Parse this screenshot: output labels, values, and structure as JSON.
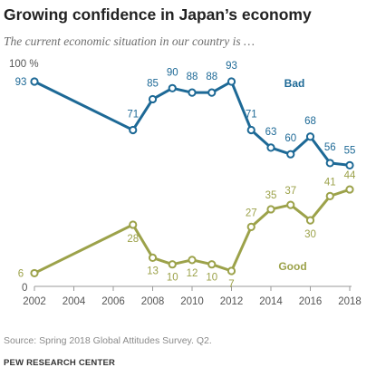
{
  "chart_data": {
    "type": "line",
    "title": "Growing confidence in Japan’s economy",
    "subtitle": "The current economic situation in our country is …",
    "y_top_label": "100 %",
    "y_bottom_label": "0",
    "ylim": [
      0,
      100
    ],
    "x_ticks": [
      2002,
      2004,
      2006,
      2008,
      2010,
      2012,
      2014,
      2016,
      2018
    ],
    "xlim": [
      2002,
      2018
    ],
    "series": [
      {
        "name": "Bad",
        "color": "#1d6996",
        "points": [
          {
            "x": 2002,
            "y": 93
          },
          {
            "x": 2007,
            "y": 71
          },
          {
            "x": 2008,
            "y": 85
          },
          {
            "x": 2009,
            "y": 90
          },
          {
            "x": 2010,
            "y": 88
          },
          {
            "x": 2011,
            "y": 88
          },
          {
            "x": 2012,
            "y": 93
          },
          {
            "x": 2013,
            "y": 71
          },
          {
            "x": 2014,
            "y": 63
          },
          {
            "x": 2015,
            "y": 60
          },
          {
            "x": 2016,
            "y": 68
          },
          {
            "x": 2017,
            "y": 56
          },
          {
            "x": 2018,
            "y": 55
          }
        ]
      },
      {
        "name": "Good",
        "color": "#9ca24a",
        "points": [
          {
            "x": 2002,
            "y": 6
          },
          {
            "x": 2007,
            "y": 28
          },
          {
            "x": 2008,
            "y": 13
          },
          {
            "x": 2009,
            "y": 10
          },
          {
            "x": 2010,
            "y": 12
          },
          {
            "x": 2011,
            "y": 10
          },
          {
            "x": 2012,
            "y": 7
          },
          {
            "x": 2013,
            "y": 27
          },
          {
            "x": 2014,
            "y": 35
          },
          {
            "x": 2015,
            "y": 37
          },
          {
            "x": 2016,
            "y": 30
          },
          {
            "x": 2017,
            "y": 41
          },
          {
            "x": 2018,
            "y": 44
          }
        ]
      }
    ]
  },
  "footer": {
    "source": "Source: Spring 2018 Global Attitudes Survey. Q2.",
    "credit": "PEW RESEARCH CENTER"
  }
}
